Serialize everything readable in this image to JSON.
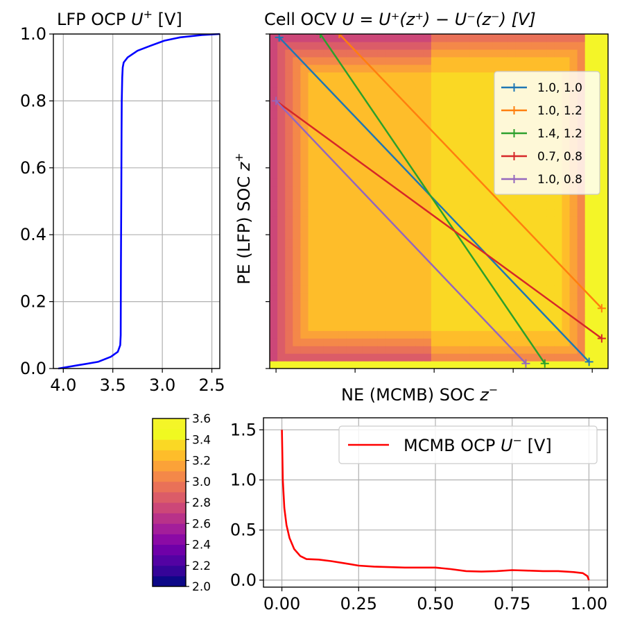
{
  "chart_data": [
    {
      "id": "lfp",
      "type": "line",
      "title_main": "LFP OCP ",
      "title_sym": "U",
      "title_sup": "+",
      "title_unit": " [V]",
      "x_ticks": [
        "4.0",
        "3.5",
        "3.0",
        "2.5"
      ],
      "y_ticks": [
        "0.0",
        "0.2",
        "0.4",
        "0.6",
        "0.8",
        "1.0"
      ],
      "xlim": [
        4.1,
        2.42
      ],
      "ylim": [
        0,
        1
      ],
      "grid": true,
      "series": [
        {
          "name": "LFP OCP U+",
          "color": "#0000ff",
          "x": [
            4.05,
            3.85,
            3.65,
            3.52,
            3.45,
            3.425,
            3.42,
            3.418,
            3.415,
            3.412,
            3.41,
            3.405,
            3.4,
            3.39,
            3.35,
            3.25,
            3.12,
            2.98,
            2.82,
            2.6,
            2.42
          ],
          "y": [
            0.0,
            0.01,
            0.02,
            0.035,
            0.05,
            0.07,
            0.1,
            0.3,
            0.5,
            0.7,
            0.8,
            0.87,
            0.9,
            0.915,
            0.93,
            0.95,
            0.965,
            0.98,
            0.99,
            0.997,
            1.0
          ]
        }
      ]
    },
    {
      "id": "ocv",
      "type": "heatmap",
      "title_main": "Cell OCV ",
      "title_formula": "U = U⁺(z⁺) − U⁻(z⁻) [V]",
      "xlabel_main": "NE (MCMB) SOC ",
      "xlabel_sym": "z",
      "xlabel_sup": "−",
      "ylabel_main": "PE (LFP) SOC ",
      "ylabel_sym": "z",
      "ylabel_sup": "+",
      "xlim": [
        -0.02,
        1.05
      ],
      "ylim": [
        0,
        1
      ],
      "colormap": "plasma",
      "levels": [
        2.0,
        2.1,
        2.2,
        2.3,
        2.4,
        2.5,
        2.6,
        2.7,
        2.8,
        2.9,
        3.0,
        3.1,
        3.2,
        3.3,
        3.4,
        3.5,
        3.6
      ],
      "plateau_values": {
        "inner_left": 3.25,
        "inner_right": 3.37
      },
      "legend_position": "upper right",
      "series": [
        {
          "name": "1.0, 1.0",
          "color": "#1f77b4",
          "x": [
            0.01,
            0.99
          ],
          "y": [
            0.99,
            0.02
          ]
        },
        {
          "name": "1.0, 1.2",
          "color": "#ff7f0e",
          "x": [
            0.2,
            1.03
          ],
          "y": [
            1.0,
            0.18
          ]
        },
        {
          "name": "1.4, 1.2",
          "color": "#2ca02c",
          "x": [
            0.14,
            0.85
          ],
          "y": [
            1.0,
            0.015
          ]
        },
        {
          "name": "0.7, 0.8",
          "color": "#d62728",
          "x": [
            0.0,
            1.03
          ],
          "y": [
            0.8,
            0.09
          ]
        },
        {
          "name": "1.0, 0.8",
          "color": "#9467bd",
          "x": [
            0.0,
            0.79
          ],
          "y": [
            0.8,
            0.015
          ]
        }
      ]
    },
    {
      "id": "mcmb",
      "type": "line",
      "x_ticks": [
        "0.00",
        "0.25",
        "0.50",
        "0.75",
        "1.00"
      ],
      "y_ticks": [
        "0.0",
        "0.5",
        "1.0",
        "1.5"
      ],
      "xlim": [
        -0.06,
        1.06
      ],
      "ylim": [
        -0.07,
        1.62
      ],
      "grid": true,
      "legend_main": "MCMB OCP ",
      "legend_sym": "U",
      "legend_sup": "−",
      "legend_unit": " [V]",
      "legend_position": "upper right",
      "series": [
        {
          "name": "MCMB OCP U−",
          "color": "#ff0000",
          "x": [
            0.0,
            0.003,
            0.008,
            0.015,
            0.025,
            0.04,
            0.06,
            0.08,
            0.12,
            0.16,
            0.2,
            0.25,
            0.3,
            0.4,
            0.5,
            0.55,
            0.6,
            0.65,
            0.7,
            0.75,
            0.8,
            0.85,
            0.9,
            0.95,
            0.98,
            0.995,
            1.0
          ],
          "y": [
            1.5,
            1.0,
            0.72,
            0.55,
            0.42,
            0.31,
            0.24,
            0.21,
            0.205,
            0.19,
            0.17,
            0.145,
            0.135,
            0.125,
            0.125,
            0.11,
            0.09,
            0.085,
            0.09,
            0.1,
            0.095,
            0.09,
            0.09,
            0.08,
            0.07,
            0.04,
            0.0
          ]
        }
      ]
    },
    {
      "id": "colorbar",
      "type": "colorbar",
      "range": [
        2.0,
        3.6
      ],
      "ticks": [
        "2.0",
        "2.2",
        "2.4",
        "2.6",
        "2.8",
        "3.0",
        "3.2",
        "3.4",
        "3.6"
      ],
      "colors": [
        "#0d0887",
        "#350498",
        "#5302a3",
        "#6f00a8",
        "#8b0aa5",
        "#a31e9a",
        "#b83289",
        "#cc4778",
        "#db5c68",
        "#e97158",
        "#f48849",
        "#fba238",
        "#febd2a",
        "#fad824",
        "#f0f921",
        "#f4f528"
      ]
    }
  ]
}
